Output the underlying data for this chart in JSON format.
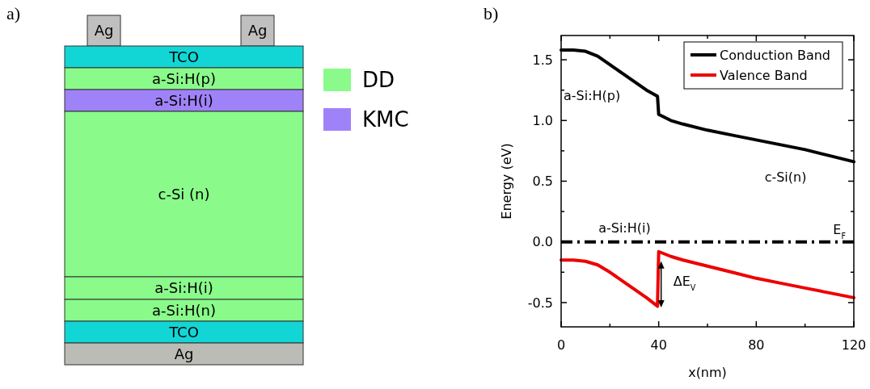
{
  "chart_data": [
    {
      "type": "other",
      "title": "a)",
      "annotations": [
        "Ag",
        "Ag",
        "TCO",
        "a-Si:H(p)",
        "a-Si:H(i)",
        "c-Si (n)",
        "a-Si:H(i)",
        "a-Si:H(n)",
        "TCO",
        "Ag",
        "DD",
        "KMC"
      ]
    },
    {
      "type": "line",
      "title": "b)",
      "xlabel": "x(nm)",
      "ylabel": "Energy (eV)",
      "x": [
        0,
        5,
        10,
        15,
        20,
        25,
        30,
        35,
        39.5,
        40,
        45,
        50,
        60,
        70,
        80,
        90,
        100,
        110,
        120
      ],
      "series": [
        {
          "name": "Conduction Band",
          "color": "#000000",
          "values": [
            1.58,
            1.58,
            1.57,
            1.53,
            1.46,
            1.39,
            1.32,
            1.25,
            1.2,
            1.05,
            1.0,
            0.97,
            0.92,
            0.88,
            0.84,
            0.8,
            0.76,
            0.71,
            0.66
          ]
        },
        {
          "name": "Valence Band",
          "color": "#ee0000",
          "values": [
            -0.15,
            -0.15,
            -0.16,
            -0.19,
            -0.25,
            -0.32,
            -0.39,
            -0.46,
            -0.53,
            -0.08,
            -0.12,
            -0.15,
            -0.2,
            -0.25,
            -0.3,
            -0.34,
            -0.38,
            -0.42,
            -0.46
          ]
        }
      ],
      "xlim": [
        0,
        120
      ],
      "xticks": [
        0,
        {
          "value": 20,
          "label": null
        },
        40,
        {
          "value": 60,
          "label": null
        },
        80,
        {
          "value": 100,
          "label": null
        },
        120
      ],
      "ylim": [
        -0.7,
        1.7
      ],
      "yticks": [
        -0.5,
        {
          "value": -0.25,
          "label": null
        },
        {
          "value": 0,
          "label": "0.0"
        },
        {
          "value": 0.25,
          "label": null
        },
        0.5,
        {
          "value": 0.75,
          "label": null
        },
        {
          "value": 1,
          "label": "1.0"
        },
        {
          "value": 1.25,
          "label": null
        },
        1.5
      ],
      "ref_lines": [
        {
          "axis": "y",
          "value": 0,
          "label": "E$_{F}$",
          "color": "#000000",
          "line_style": "dashdot"
        }
      ],
      "annotations": [
        "a-Si:H(p)",
        "a-Si:H(i)",
        "c-Si(n)",
        "ΔE$_{V}$"
      ],
      "legend": "top right",
      "grid": false,
      "marker": "none",
      "line_style": "solid"
    }
  ]
}
